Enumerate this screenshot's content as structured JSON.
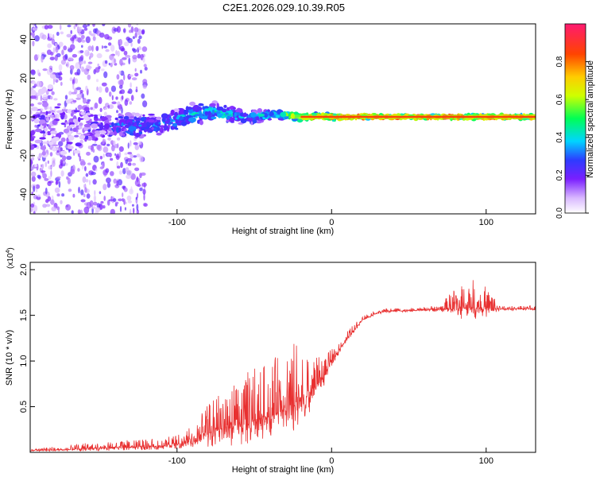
{
  "title": "C2E1.2026.029.10.39.R05",
  "chart_data": [
    {
      "type": "heatmap",
      "xlabel": "Height of straight line (km)",
      "ylabel": "Frequency (Hz)",
      "xlim": [
        -195,
        132
      ],
      "ylim": [
        -50,
        48
      ],
      "xticks": [
        -100,
        0,
        100
      ],
      "xtick_labels": [
        "-100",
        "0",
        "100"
      ],
      "yticks": [
        -40,
        -20,
        0,
        20,
        40
      ],
      "ytick_labels": [
        "-40",
        "-20",
        "0",
        "20",
        "40"
      ],
      "colorbar": {
        "label": "Normalized spectral amplitude",
        "range": [
          0,
          1
        ],
        "ticks": [
          0.0,
          0.2,
          0.4,
          0.6,
          0.8
        ],
        "tick_labels": [
          "0.0",
          "0.2",
          "0.4",
          "0.6",
          "0.8"
        ]
      },
      "ridge": {
        "x": [
          -190,
          -170,
          -150,
          -130,
          -110,
          -95,
          -80,
          -70,
          -60,
          -50,
          -40,
          -30,
          -20,
          -10,
          0,
          20,
          50,
          80,
          100,
          132
        ],
        "center_freq": [
          -3,
          -4,
          -5,
          -5,
          -4,
          0,
          3,
          2,
          0,
          0,
          1,
          1,
          0,
          0,
          0,
          0,
          0,
          0,
          0,
          0
        ],
        "width": [
          30,
          26,
          10,
          8,
          7,
          7,
          6,
          6,
          5,
          4,
          3.5,
          3,
          2.5,
          2,
          1.5,
          1.2,
          1.2,
          1.2,
          1.2,
          1.2
        ],
        "amplitude": [
          0.15,
          0.15,
          0.2,
          0.3,
          0.3,
          0.35,
          0.4,
          0.4,
          0.35,
          0.35,
          0.4,
          0.5,
          0.7,
          0.8,
          0.9,
          0.95,
          0.9,
          0.9,
          0.9,
          0.85
        ]
      }
    },
    {
      "type": "line",
      "xlabel": "Height of straight line (km)",
      "ylabel": "SNR (10 * v/v)",
      "y_multiplier": "(x10",
      "y_multiplier_exp": "4",
      "y_multiplier_close": ")",
      "xlim": [
        -195,
        132
      ],
      "ylim": [
        0,
        2.08
      ],
      "xticks": [
        -100,
        0,
        100
      ],
      "xtick_labels": [
        "-100",
        "0",
        "100"
      ],
      "yticks": [
        0.5,
        1.0,
        1.5,
        2.0
      ],
      "ytick_labels": [
        "0.5",
        "1.0",
        "1.5",
        "2.0"
      ],
      "color": "#e83030",
      "series": [
        {
          "name": "SNR",
          "x": [
            -195,
            -170,
            -150,
            -130,
            -110,
            -95,
            -85,
            -75,
            -65,
            -55,
            -45,
            -35,
            -25,
            -15,
            -10,
            -5,
            0,
            10,
            20,
            30,
            40,
            50,
            60,
            70,
            80,
            90,
            100,
            110,
            120,
            132
          ],
          "base": [
            0.02,
            0.03,
            0.05,
            0.06,
            0.07,
            0.1,
            0.16,
            0.24,
            0.28,
            0.33,
            0.38,
            0.42,
            0.5,
            0.62,
            0.72,
            0.82,
            1.0,
            1.25,
            1.45,
            1.53,
            1.55,
            1.55,
            1.56,
            1.56,
            1.57,
            1.58,
            1.58,
            1.57,
            1.57,
            1.57
          ],
          "noise": [
            0.01,
            0.03,
            0.05,
            0.05,
            0.06,
            0.08,
            0.15,
            0.25,
            0.3,
            0.35,
            0.35,
            0.4,
            0.45,
            0.3,
            0.2,
            0.15,
            0.08,
            0.05,
            0.03,
            0.02,
            0.02,
            0.02,
            0.02,
            0.03,
            0.15,
            0.2,
            0.15,
            0.02,
            0.02,
            0.02
          ]
        }
      ]
    }
  ]
}
